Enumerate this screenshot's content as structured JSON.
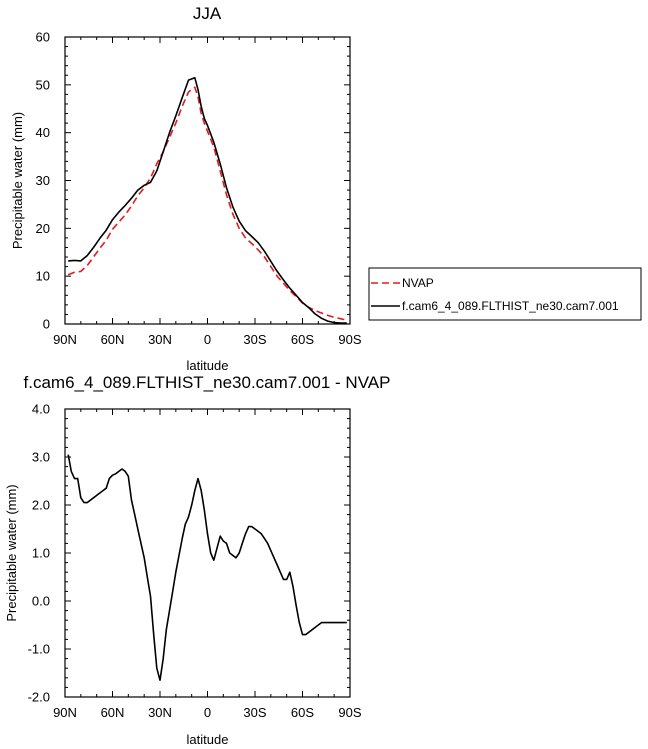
{
  "chart_data": [
    {
      "type": "line",
      "title": "JJA",
      "xlabel": "latitude",
      "ylabel": "Precipitable water (mm)",
      "x_tick_labels": [
        "90N",
        "60N",
        "30N",
        "0",
        "30S",
        "60S",
        "90S"
      ],
      "x_ticks": [
        90,
        60,
        30,
        0,
        -30,
        -60,
        -90
      ],
      "xlim": [
        90,
        -90
      ],
      "ylim": [
        0,
        60
      ],
      "y_ticks": [
        0,
        10,
        20,
        30,
        40,
        50,
        60
      ],
      "y_tick_labels": [
        "0",
        "10",
        "20",
        "30",
        "40",
        "50",
        "60"
      ],
      "legend_position": "right",
      "series": [
        {
          "name": "NVAP",
          "color": "#e41a1c",
          "dash": "dashed",
          "x": [
            88,
            84,
            80,
            76,
            72,
            68,
            64,
            60,
            56,
            52,
            48,
            44,
            40,
            36,
            32,
            28,
            24,
            20,
            16,
            12,
            8,
            6,
            4,
            2,
            0,
            -4,
            -8,
            -12,
            -16,
            -20,
            -24,
            -28,
            -32,
            -36,
            -40,
            -44,
            -48,
            -52,
            -56,
            -60,
            -64,
            -68,
            -72,
            -76,
            -80,
            -84,
            -88
          ],
          "y": [
            10.3,
            10.8,
            11.0,
            12.2,
            14.0,
            15.8,
            17.5,
            19.8,
            21.3,
            22.8,
            24.7,
            26.8,
            28.5,
            30.5,
            33.5,
            36.0,
            39.0,
            42.0,
            45.5,
            48.5,
            49.5,
            47.5,
            44.0,
            42.0,
            40.3,
            37.0,
            32.0,
            27.0,
            23.0,
            20.0,
            18.0,
            16.8,
            15.5,
            14.0,
            12.0,
            10.0,
            8.5,
            7.0,
            5.7,
            4.4,
            3.5,
            2.8,
            2.3,
            1.8,
            1.4,
            1.1,
            0.8
          ]
        },
        {
          "name": "f.cam6_4_089.FLTHIST_ne30.cam7.001",
          "color": "#000000",
          "dash": "solid",
          "x": [
            88,
            84,
            80,
            76,
            72,
            68,
            64,
            60,
            56,
            52,
            48,
            44,
            40,
            36,
            32,
            28,
            24,
            20,
            16,
            12,
            8,
            6,
            4,
            2,
            0,
            -4,
            -8,
            -12,
            -16,
            -20,
            -24,
            -28,
            -32,
            -36,
            -40,
            -44,
            -48,
            -52,
            -56,
            -60,
            -64,
            -68,
            -72,
            -76,
            -80,
            -84,
            -88
          ],
          "y": [
            13.2,
            13.3,
            13.2,
            14.3,
            16.0,
            17.9,
            19.6,
            21.8,
            23.4,
            24.8,
            26.3,
            28.0,
            29.0,
            29.6,
            32.0,
            36.0,
            40.0,
            43.5,
            47.3,
            51.0,
            51.5,
            49.0,
            45.5,
            43.0,
            41.5,
            38.0,
            33.5,
            28.5,
            24.5,
            21.5,
            19.5,
            18.3,
            17.0,
            15.2,
            13.1,
            11.0,
            9.2,
            7.5,
            6.0,
            4.5,
            3.4,
            2.1,
            1.2,
            0.6,
            0.3,
            0.2,
            0.2
          ]
        }
      ]
    },
    {
      "type": "line",
      "title": "f.cam6_4_089.FLTHIST_ne30.cam7.001 - NVAP",
      "xlabel": "latitude",
      "ylabel": "Precipitable water (mm)",
      "x_tick_labels": [
        "90N",
        "60N",
        "30N",
        "0",
        "30S",
        "60S",
        "90S"
      ],
      "x_ticks": [
        90,
        60,
        30,
        0,
        -30,
        -60,
        -90
      ],
      "xlim": [
        90,
        -90
      ],
      "ylim": [
        -2.0,
        4.0
      ],
      "y_ticks": [
        -2.0,
        -1.0,
        0.0,
        1.0,
        2.0,
        3.0,
        4.0
      ],
      "y_tick_labels": [
        "-2.0",
        "-1.0",
        "0.0",
        "1.0",
        "2.0",
        "3.0",
        "4.0"
      ],
      "series": [
        {
          "color": "#000000",
          "dash": "solid",
          "x": [
            88,
            86,
            84,
            82,
            80,
            78,
            76,
            74,
            72,
            70,
            68,
            66,
            64,
            62,
            60,
            58,
            56,
            54,
            52,
            50,
            48,
            46,
            44,
            42,
            40,
            38,
            36,
            34,
            32,
            30,
            28,
            26,
            24,
            22,
            20,
            18,
            16,
            14,
            12,
            10,
            8,
            6,
            4,
            2,
            0,
            -2,
            -4,
            -6,
            -8,
            -10,
            -12,
            -14,
            -16,
            -18,
            -20,
            -22,
            -24,
            -26,
            -28,
            -30,
            -32,
            -34,
            -36,
            -38,
            -40,
            -42,
            -44,
            -46,
            -48,
            -50,
            -52,
            -54,
            -56,
            -58,
            -60,
            -62,
            -64,
            -66,
            -68,
            -70,
            -72,
            -74,
            -76,
            -78,
            -80,
            -82,
            -84,
            -86,
            -88
          ],
          "y": [
            3.05,
            2.7,
            2.55,
            2.55,
            2.15,
            2.05,
            2.05,
            2.1,
            2.15,
            2.2,
            2.25,
            2.3,
            2.35,
            2.55,
            2.62,
            2.65,
            2.7,
            2.75,
            2.7,
            2.6,
            2.1,
            1.8,
            1.5,
            1.2,
            0.9,
            0.5,
            0.1,
            -0.7,
            -1.4,
            -1.65,
            -1.2,
            -0.6,
            -0.2,
            0.2,
            0.6,
            0.95,
            1.3,
            1.6,
            1.75,
            2.0,
            2.3,
            2.55,
            2.3,
            1.9,
            1.4,
            1.0,
            0.85,
            1.1,
            1.35,
            1.25,
            1.2,
            1.0,
            0.95,
            0.9,
            1.0,
            1.2,
            1.4,
            1.55,
            1.55,
            1.5,
            1.45,
            1.4,
            1.3,
            1.2,
            1.05,
            0.9,
            0.75,
            0.6,
            0.45,
            0.45,
            0.6,
            0.3,
            -0.1,
            -0.45,
            -0.7,
            -0.7,
            -0.65,
            -0.6,
            -0.55,
            -0.5,
            -0.45,
            -0.45,
            -0.45,
            -0.45,
            -0.45,
            -0.45,
            -0.45,
            -0.45,
            -0.45
          ]
        }
      ]
    }
  ]
}
